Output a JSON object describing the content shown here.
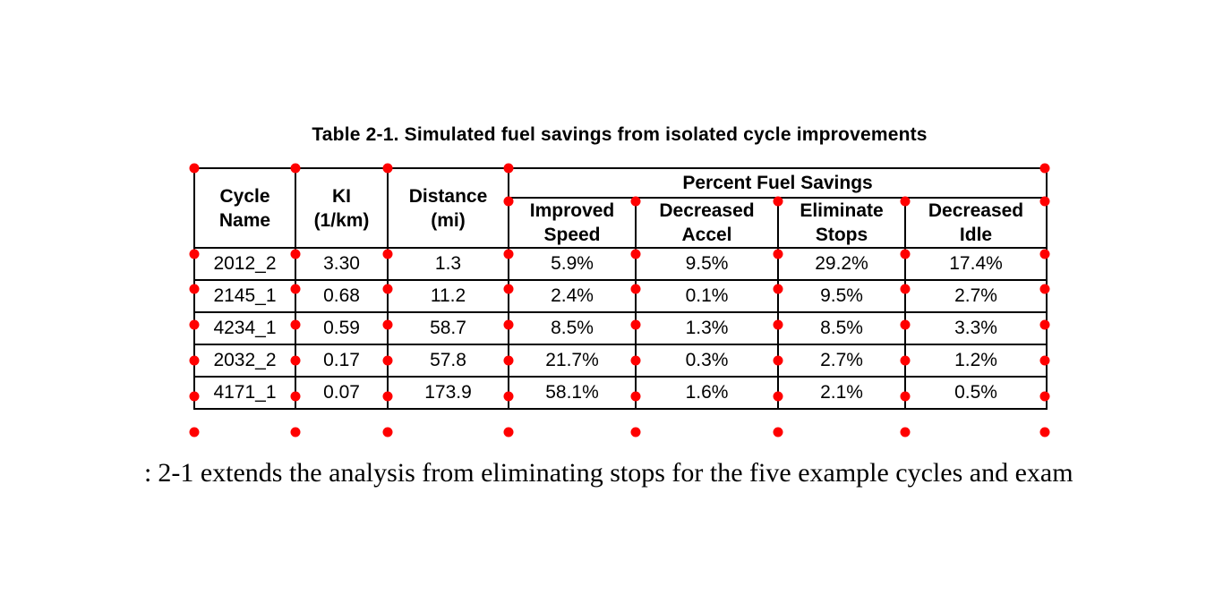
{
  "page": {
    "title": "Table 2-1. Simulated fuel savings from isolated cycle improvements",
    "body_fragment": ":",
    "body_text": "2-1 extends the analysis from eliminating stops for the five example cycles and exam"
  },
  "table": {
    "headers": {
      "cycle_name": "Cycle\nName",
      "ki": "KI\n(1/km)",
      "distance": "Distance\n(mi)",
      "group": "Percent Fuel Savings",
      "sub": [
        "Improved\nSpeed",
        "Decreased\nAccel",
        "Eliminate\nStops",
        "Decreased\nIdle"
      ]
    },
    "rows": [
      [
        "2012_2",
        "3.30",
        "1.3",
        "5.9%",
        "9.5%",
        "29.2%",
        "17.4%"
      ],
      [
        "2145_1",
        "0.68",
        "11.2",
        "2.4%",
        "0.1%",
        "9.5%",
        "2.7%"
      ],
      [
        "4234_1",
        "0.59",
        "58.7",
        "8.5%",
        "1.3%",
        "8.5%",
        "3.3%"
      ],
      [
        "2032_2",
        "0.17",
        "57.8",
        "21.7%",
        "0.3%",
        "2.7%",
        "1.2%"
      ],
      [
        "4171_1",
        "0.07",
        "173.9",
        "58.1%",
        "1.6%",
        "2.1%",
        "0.5%"
      ]
    ],
    "border_color": "#000000"
  },
  "annotations": {
    "dot_color": "#ff0000"
  }
}
